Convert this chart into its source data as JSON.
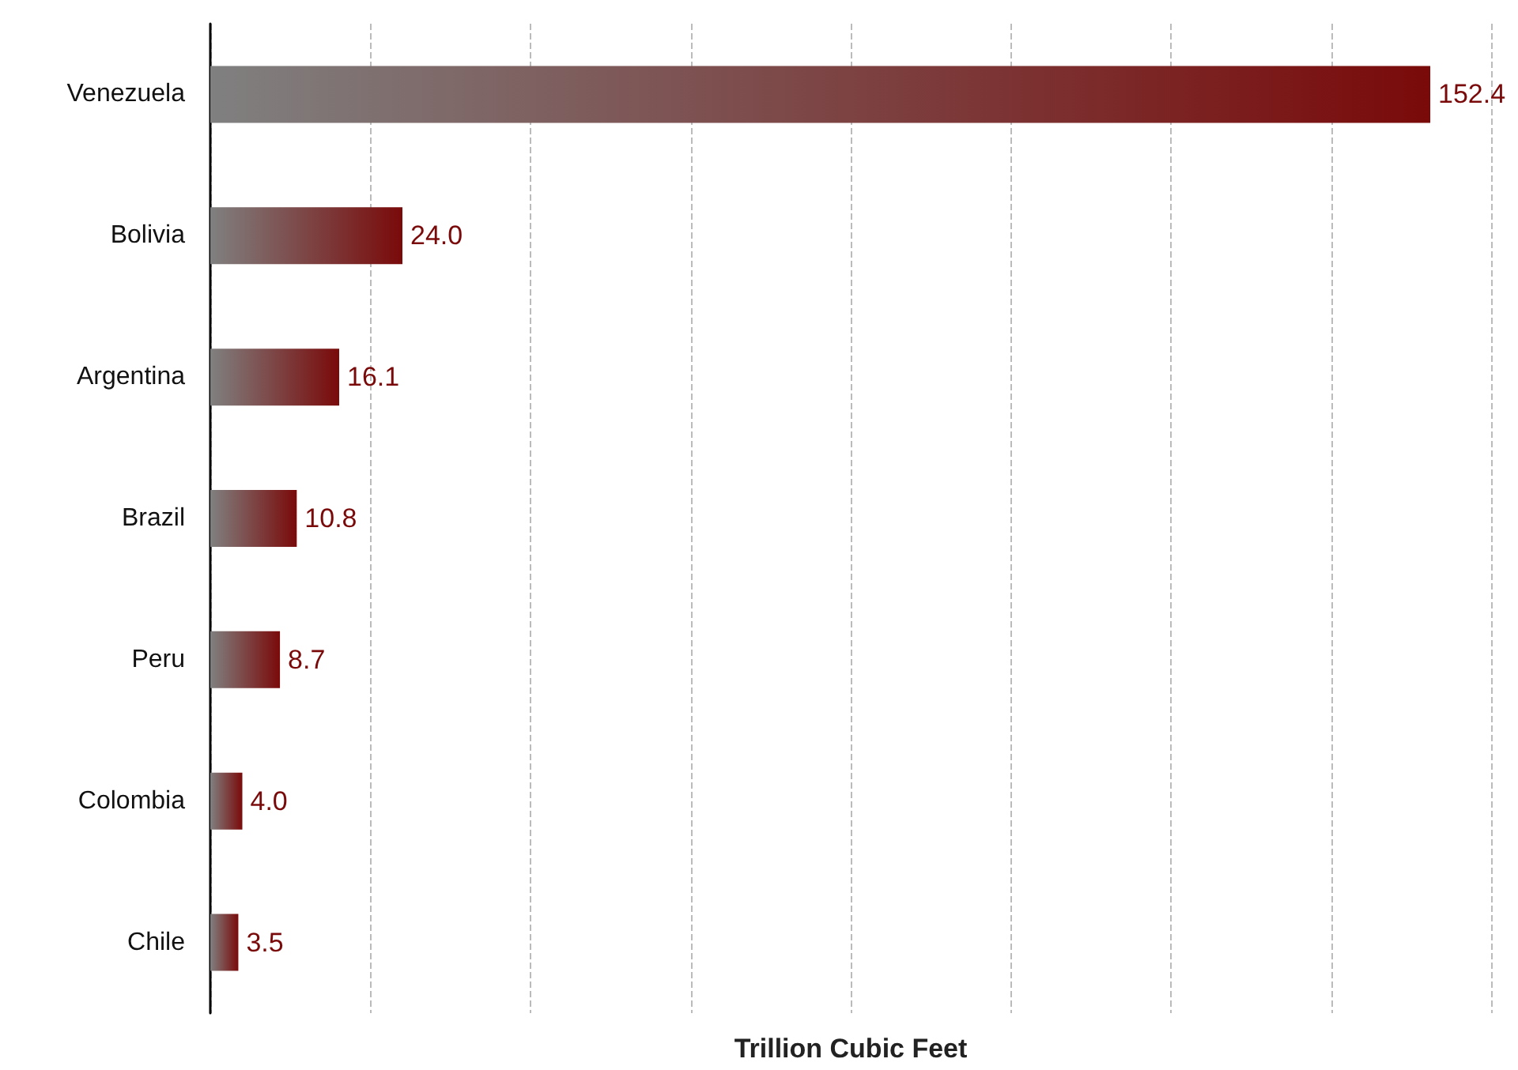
{
  "chart_data": {
    "type": "bar",
    "orientation": "horizontal",
    "xlabel": "Trillion Cubic Feet",
    "categories": [
      "Venezuela",
      "Bolivia",
      "Argentina",
      "Brazil",
      "Peru",
      "Colombia",
      "Chile"
    ],
    "values": [
      152.4,
      24.0,
      16.1,
      10.8,
      8.7,
      4.0,
      3.5
    ],
    "value_labels": [
      "152.4",
      "24.0",
      "16.1",
      "10.8",
      "8.7",
      "4.0",
      "3.5"
    ],
    "color": "#7a0a0a",
    "xlim": [
      0,
      160
    ],
    "xticks": [
      {
        "value": 0,
        "label": null
      },
      {
        "value": 20,
        "label": null
      },
      {
        "value": 40,
        "label": null
      },
      {
        "value": 60,
        "label": null
      },
      {
        "value": 80,
        "label": null
      },
      {
        "value": 100,
        "label": null
      },
      {
        "value": 120,
        "label": null
      },
      {
        "value": 140,
        "label": null
      },
      {
        "value": 160,
        "label": null
      }
    ],
    "grid": "x",
    "tick_labels": "y"
  }
}
